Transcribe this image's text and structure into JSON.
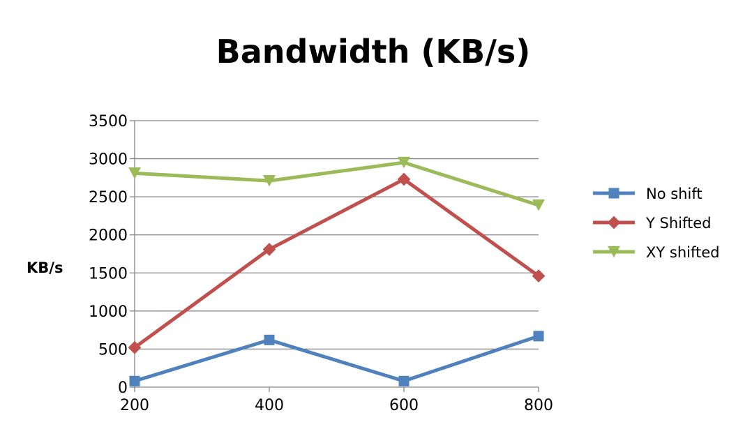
{
  "chart_data": {
    "type": "line",
    "title": "Bandwidth (KB/s)",
    "xlabel": "",
    "ylabel": "KB/s",
    "x": [
      200,
      400,
      600,
      800
    ],
    "xlim": [
      200,
      800
    ],
    "ylim": [
      0,
      3500
    ],
    "yticks": [
      0,
      500,
      1000,
      1500,
      2000,
      2500,
      3000,
      3500
    ],
    "xticks": [
      200,
      400,
      600,
      800
    ],
    "grid": "horizontal",
    "legend_position": "right",
    "series": [
      {
        "name": "No shift",
        "values": [
          80,
          620,
          80,
          670
        ],
        "color": "#4f81bd",
        "marker": "square"
      },
      {
        "name": "Y Shifted",
        "values": [
          520,
          1810,
          2730,
          1460
        ],
        "color": "#c0504d",
        "marker": "diamond"
      },
      {
        "name": "XY shifted",
        "values": [
          2810,
          2710,
          2950,
          2390
        ],
        "color": "#9bbb59",
        "marker": "triangle-down"
      }
    ]
  }
}
